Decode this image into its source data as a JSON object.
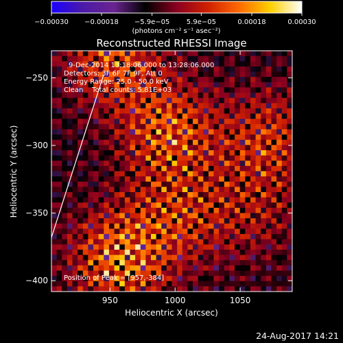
{
  "chart_data": {
    "type": "heatmap",
    "title": "Reconstructed RHESSI Image",
    "xlabel": "Heliocentric X (arcsec)",
    "ylabel": "Heliocentric Y (arcsec)",
    "xlim": [
      905,
      1090
    ],
    "ylim": [
      -408,
      -230
    ],
    "x_ticks": [
      950,
      1000,
      1050
    ],
    "x_tick_labels": [
      "950",
      "1000",
      "1050"
    ],
    "y_ticks": [
      -250,
      -300,
      -350,
      -400
    ],
    "y_tick_labels": [
      "−250",
      "−300",
      "−350",
      "−400"
    ],
    "grid": false,
    "colorbar": {
      "location": "top",
      "range": [
        -0.0003,
        0.0003
      ],
      "ticks": [
        -0.0003,
        -0.00018,
        -5.9e-05,
        5.9e-05,
        0.00018,
        0.0003
      ],
      "tick_labels": [
        "−0.00030",
        "−0.00018",
        "−5.9e−05",
        "5.9e−05",
        "0.00018",
        "0.00030"
      ],
      "units_label": "(photons cm⁻² s⁻¹ asec⁻²)",
      "colormap": [
        "#1a00ff",
        "#4b1aa8",
        "#6a2490",
        "#000000",
        "#8a0020",
        "#d02000",
        "#ff6a00",
        "#ffd000",
        "#ffffff"
      ]
    },
    "sources": [
      {
        "x": 957,
        "y": -384,
        "intensity": 0.0003
      },
      {
        "x": 952,
        "y": -235,
        "intensity": 0.00024
      },
      {
        "x": 995,
        "y": -290,
        "intensity": 0.00026
      },
      {
        "x": 1003,
        "y": -352,
        "intensity": 0.00018
      },
      {
        "x": 1072,
        "y": -295,
        "intensity": 0.0002
      },
      {
        "x": 1060,
        "y": -350,
        "intensity": 0.00012
      }
    ],
    "limb": [
      [
        905,
        -368
      ],
      [
        945,
        -248
      ]
    ],
    "annotations": {
      "time_range": "9-Dec-2014 13:18:06.000 to 13:28:06.000",
      "detectors": "Detectors: 3F 6F 7F 9F, Att 0",
      "energy_range": "Energy Range: 25.0 - 50.0 keV",
      "clean_counts": "Clean    Total counts: 5.81E+03",
      "peak_position": "Position of Peak = [957,-384]"
    }
  },
  "footer": {
    "timestamp": "24-Aug-2017 14:21"
  }
}
